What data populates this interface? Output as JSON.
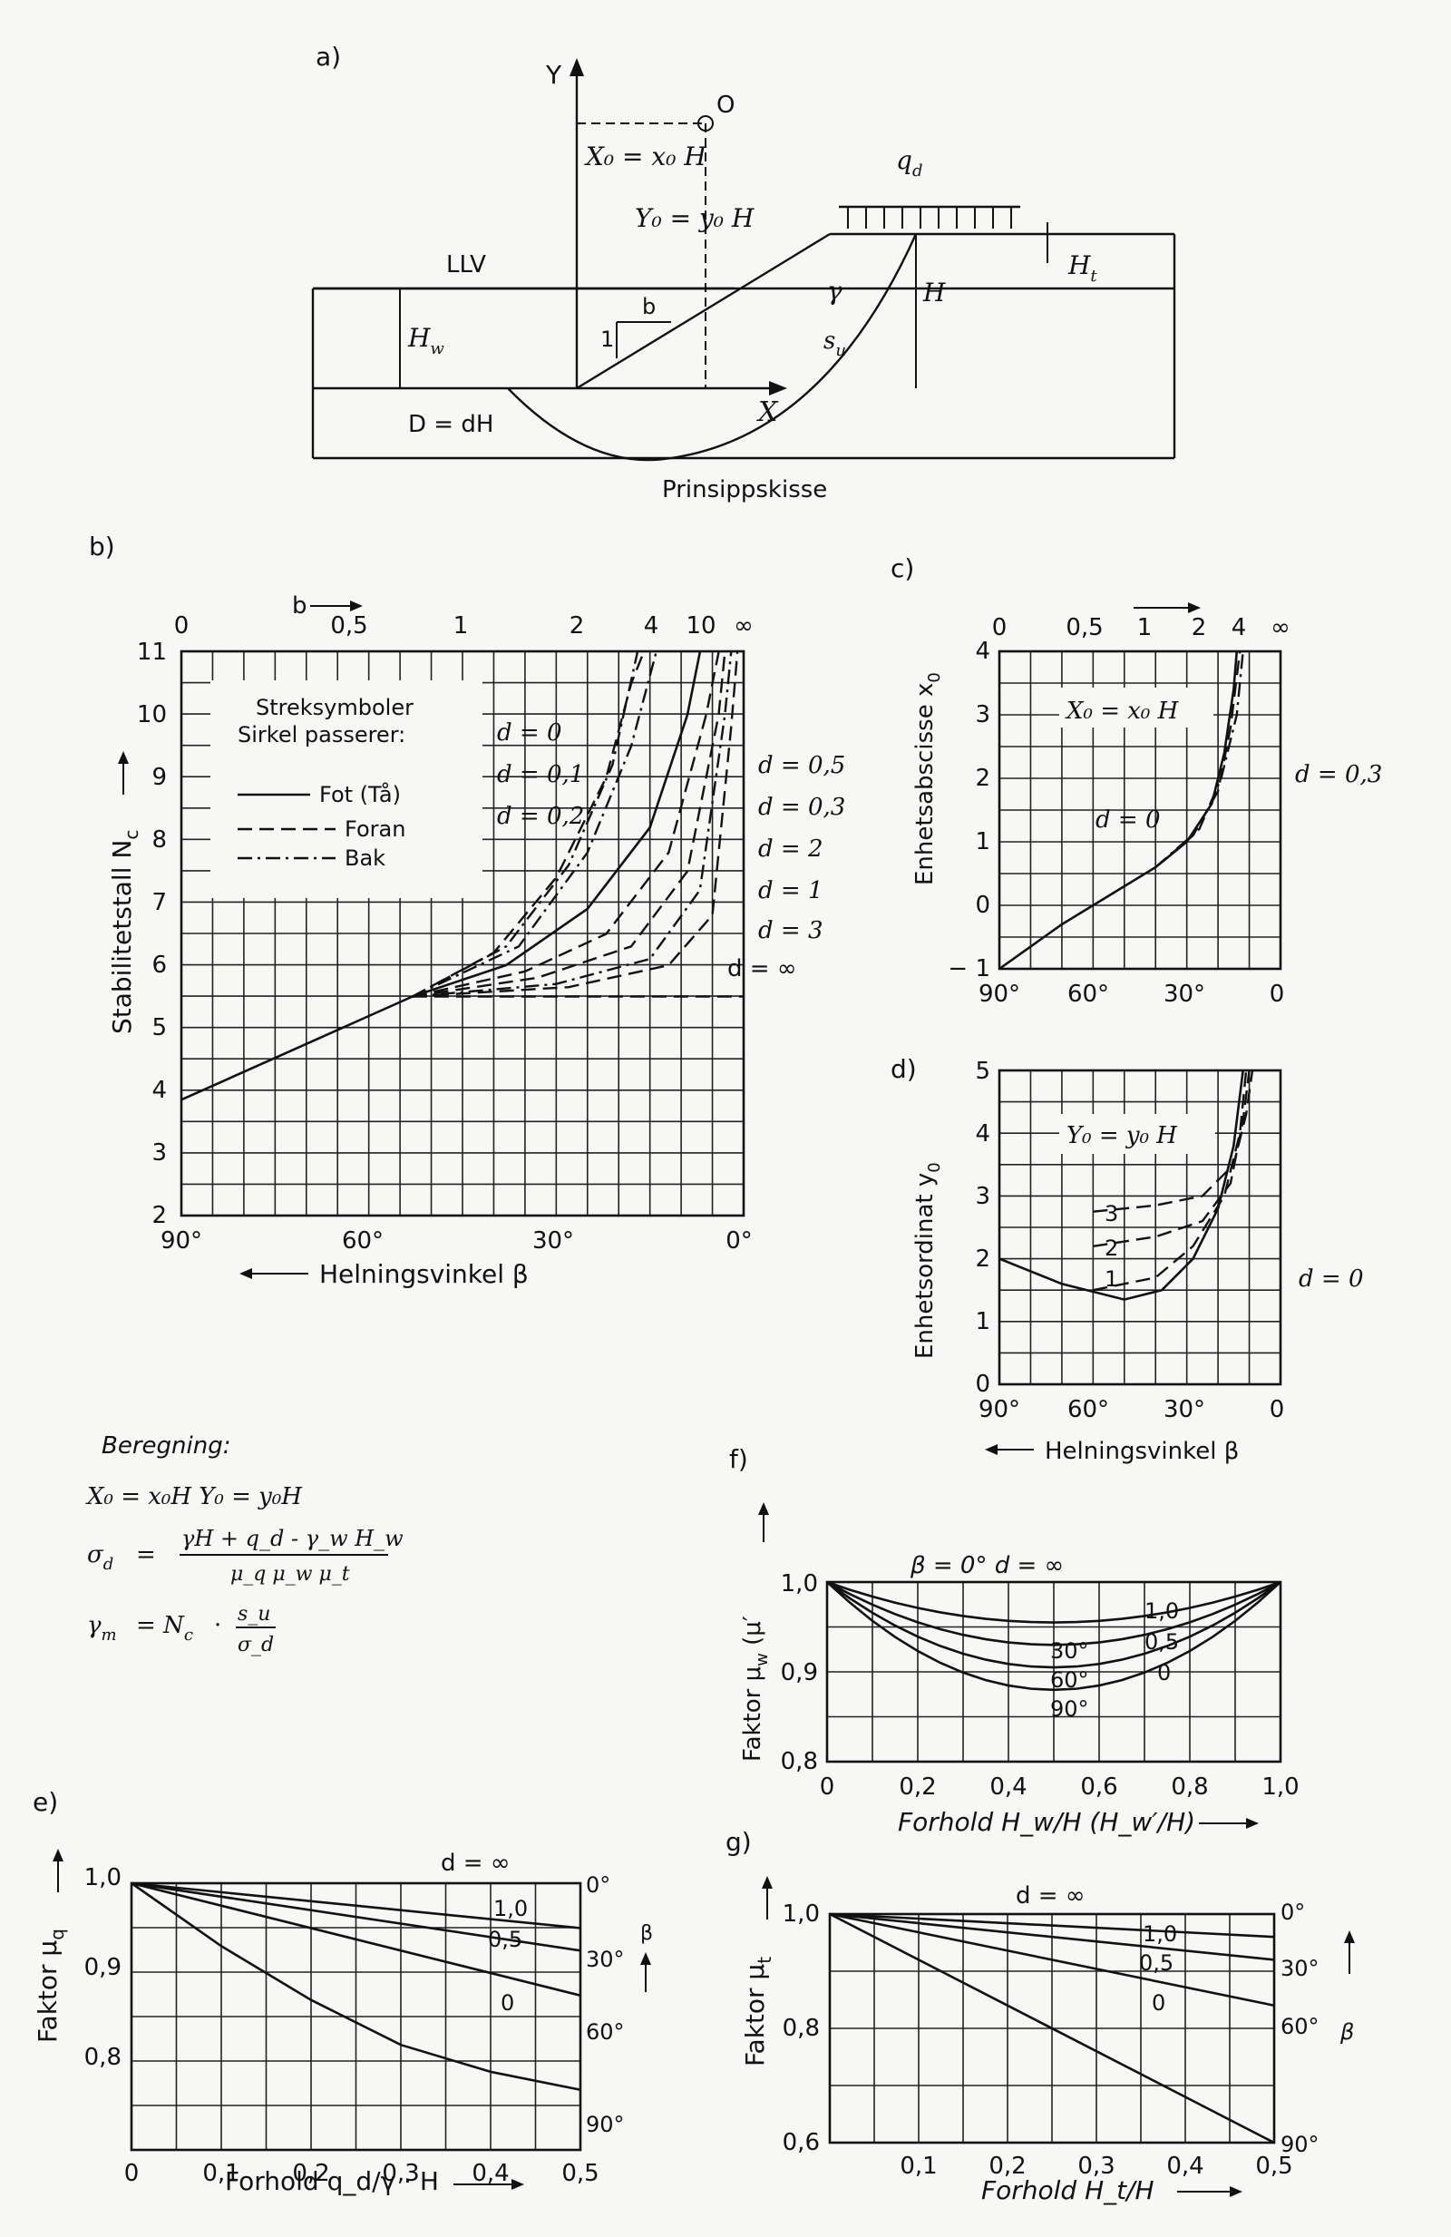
{
  "a": {
    "panel": "a)",
    "caption": "Prinsippskisse",
    "Y": "Y",
    "X": "X",
    "O": "O",
    "x0": "X₀ = x₀ H",
    "y0": "Y₀ = y₀ H",
    "qd": "q",
    "qd_sub": "d",
    "llv": "LLV",
    "hw": "H",
    "hw_sub": "w",
    "b": "b",
    "one": "1",
    "gamma": "γ",
    "su": "s",
    "su_sub": "u",
    "H": "H",
    "Ht": "H",
    "Ht_sub": "t",
    "D": "D = dH"
  },
  "b": {
    "panel": "b)",
    "ylabel": "Stabilitetstall N",
    "ylabel_sub": "c",
    "xlabel": "Helningsvinkel β",
    "top_label": "b",
    "top_ticks": [
      "0",
      "0,5",
      "1",
      "2",
      "4",
      "10",
      "∞"
    ],
    "yticks": [
      "2",
      "3",
      "4",
      "5",
      "6",
      "7",
      "8",
      "9",
      "10",
      "11"
    ],
    "xticks": [
      "90°",
      "60°",
      "30°",
      "0°"
    ],
    "legend_title1": "Streksymboler",
    "legend_title2": "Sirkel passerer:",
    "legend": [
      "Fot (Tå)",
      "Foran",
      "Bak"
    ],
    "labels_left": [
      "d = 0",
      "d = 0,1",
      "d = 0,2"
    ],
    "labels_right": [
      "d = 0,5",
      "d = 0,3",
      "d = 2",
      "d = 1",
      "d = 3",
      "d = ∞"
    ]
  },
  "c": {
    "panel": "c)",
    "ylabel": "Enhetsabscisse x",
    "ylabel_sub": "0",
    "top_ticks": [
      "0",
      "0,5",
      "1",
      "2",
      "4",
      "∞"
    ],
    "yticks": [
      "− 1",
      "0",
      "1",
      "2",
      "3",
      "4"
    ],
    "xticks": [
      "90°",
      "60°",
      "30°",
      "0"
    ],
    "formula": "X₀ = x₀ H",
    "labels": [
      "d = 0",
      "d = 0,3"
    ]
  },
  "d": {
    "panel": "d)",
    "ylabel": "Enhetsordinat y",
    "ylabel_sub": "0",
    "yticks": [
      "0",
      "1",
      "2",
      "3",
      "4",
      "5"
    ],
    "xticks": [
      "90°",
      "60°",
      "30°",
      "0"
    ],
    "formula": "Y₀ = y₀ H",
    "labels": [
      "3",
      "2",
      "1",
      "d = 0"
    ],
    "xlabel": "Helningsvinkel β"
  },
  "calc": {
    "title": "Beregning:",
    "l1": "X₀ = x₀H    Y₀ = y₀H",
    "sigma": "σ",
    "sigma_sub": "d",
    "num": "γH + q_d - γ_w H_w",
    "den": "μ_q μ_w μ_t",
    "gm": "γ",
    "gm_sub": "m",
    "nc": "= N",
    "nc_sub": "c",
    "su": "s_u",
    "sd": "σ_d"
  },
  "e": {
    "panel": "e)",
    "ylabel": "Faktor μ",
    "ylabel_sub": "q",
    "xlabel": "Forhold q_d/γ · H",
    "d": "d = ∞",
    "yticks": [
      "0,8",
      "0,9",
      "1,0"
    ],
    "xticks": [
      "0",
      "0,1",
      "0,2",
      "0,3",
      "0,4",
      "0,5"
    ],
    "right": [
      "0°",
      "30°",
      "60°",
      "90°"
    ],
    "beta": "β",
    "curve_labels": [
      "1,0",
      "0,5",
      "0"
    ]
  },
  "f": {
    "panel": "f)",
    "ylabel": "Faktor μ",
    "ylabel_sub": "w",
    "ylabel_tail": " (μ′",
    "xlabel": "Forhold H_w/H (H_w′/H)",
    "header": "β = 0°      d = ∞",
    "yticks": [
      "0,8",
      "0,9",
      "1,0"
    ],
    "xticks": [
      "0",
      "0,2",
      "0,4",
      "0,6",
      "0,8",
      "1,0"
    ],
    "angle_labels": [
      "30°",
      "60°",
      "90°"
    ],
    "d_labels": [
      "1,0",
      "0,5",
      "0"
    ]
  },
  "g": {
    "panel": "g)",
    "ylabel": "Faktor μ",
    "ylabel_sub": "t",
    "xlabel": "Forhold H_t/H",
    "d": "d = ∞",
    "yticks": [
      "0,6",
      "0,8",
      "1,0"
    ],
    "xticks": [
      "0,1",
      "0,2",
      "0,3",
      "0,4",
      "0,5"
    ],
    "right": [
      "0°",
      "30°",
      "60°",
      "90°"
    ],
    "beta": "β",
    "curve_labels": [
      "1,0",
      "0,5",
      "0"
    ]
  }
}
